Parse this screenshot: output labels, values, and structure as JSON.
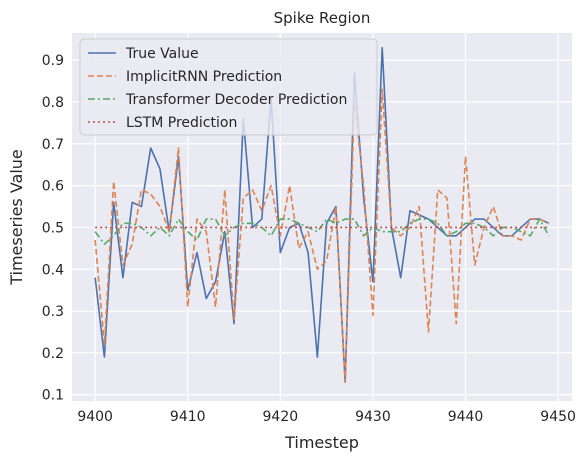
{
  "chart_data": {
    "type": "line",
    "title": "Spike Region",
    "xlabel": "Timestep",
    "ylabel": "Timeseries Value",
    "xlim": [
      9397.5,
      9451.5
    ],
    "ylim": [
      0.085,
      0.965
    ],
    "xticks": [
      9400,
      9410,
      9420,
      9430,
      9440,
      9450
    ],
    "yticks": [
      0.1,
      0.2,
      0.3,
      0.4,
      0.5,
      0.6,
      0.7,
      0.8,
      0.9
    ],
    "grid": true,
    "legend_position": "top-left",
    "x": [
      9400,
      9401,
      9402,
      9403,
      9404,
      9405,
      9406,
      9407,
      9408,
      9409,
      9410,
      9411,
      9412,
      9413,
      9414,
      9415,
      9416,
      9417,
      9418,
      9419,
      9420,
      9421,
      9422,
      9423,
      9424,
      9425,
      9426,
      9427,
      9428,
      9429,
      9430,
      9431,
      9432,
      9433,
      9434,
      9435,
      9436,
      9437,
      9438,
      9439,
      9440,
      9441,
      9442,
      9443,
      9444,
      9445,
      9446,
      9447,
      9448,
      9449
    ],
    "series": [
      {
        "name": "True Value",
        "color": "#4c72b0",
        "dash": "solid",
        "values": [
          0.38,
          0.19,
          0.56,
          0.38,
          0.56,
          0.55,
          0.69,
          0.64,
          0.49,
          0.67,
          0.35,
          0.44,
          0.33,
          0.37,
          0.49,
          0.27,
          0.76,
          0.5,
          0.52,
          0.81,
          0.44,
          0.5,
          0.51,
          0.44,
          0.19,
          0.51,
          0.55,
          0.13,
          0.87,
          0.57,
          0.37,
          0.93,
          0.5,
          0.38,
          0.54,
          0.53,
          0.52,
          0.5,
          0.48,
          0.48,
          0.5,
          0.52,
          0.52,
          0.5,
          0.48,
          0.48,
          0.5,
          0.52,
          0.52,
          0.51
        ]
      },
      {
        "name": "ImplicitRNN Prediction",
        "color": "#dd8452",
        "dash": "dashed",
        "values": [
          0.47,
          0.22,
          0.61,
          0.41,
          0.46,
          0.59,
          0.58,
          0.55,
          0.49,
          0.69,
          0.31,
          0.52,
          0.49,
          0.31,
          0.59,
          0.28,
          0.57,
          0.59,
          0.54,
          0.6,
          0.48,
          0.6,
          0.45,
          0.49,
          0.4,
          0.42,
          0.55,
          0.13,
          0.8,
          0.6,
          0.29,
          0.83,
          0.5,
          0.48,
          0.5,
          0.55,
          0.25,
          0.59,
          0.57,
          0.27,
          0.67,
          0.41,
          0.5,
          0.55,
          0.48,
          0.48,
          0.47,
          0.52,
          0.52,
          0.51
        ]
      },
      {
        "name": "Transformer Decoder Prediction",
        "color": "#55a868",
        "dash": "dashdot",
        "values": [
          0.49,
          0.46,
          0.48,
          0.51,
          0.51,
          0.5,
          0.48,
          0.5,
          0.48,
          0.52,
          0.49,
          0.47,
          0.52,
          0.52,
          0.48,
          0.5,
          0.51,
          0.51,
          0.5,
          0.48,
          0.52,
          0.52,
          0.51,
          0.5,
          0.49,
          0.52,
          0.51,
          0.52,
          0.52,
          0.48,
          0.5,
          0.49,
          0.49,
          0.49,
          0.51,
          0.52,
          0.52,
          0.51,
          0.48,
          0.49,
          0.51,
          0.51,
          0.5,
          0.48,
          0.5,
          0.5,
          0.49,
          0.48,
          0.52,
          0.48
        ]
      },
      {
        "name": "LSTM Prediction",
        "color": "#c44e52",
        "dash": "dotted",
        "values": [
          0.5,
          0.5,
          0.5,
          0.5,
          0.5,
          0.5,
          0.5,
          0.5,
          0.5,
          0.5,
          0.5,
          0.5,
          0.5,
          0.5,
          0.5,
          0.5,
          0.5,
          0.5,
          0.5,
          0.5,
          0.5,
          0.5,
          0.5,
          0.5,
          0.5,
          0.5,
          0.5,
          0.5,
          0.5,
          0.5,
          0.5,
          0.5,
          0.5,
          0.5,
          0.5,
          0.5,
          0.5,
          0.5,
          0.5,
          0.5,
          0.5,
          0.5,
          0.5,
          0.5,
          0.5,
          0.5,
          0.5,
          0.5,
          0.5,
          0.5
        ]
      }
    ]
  }
}
